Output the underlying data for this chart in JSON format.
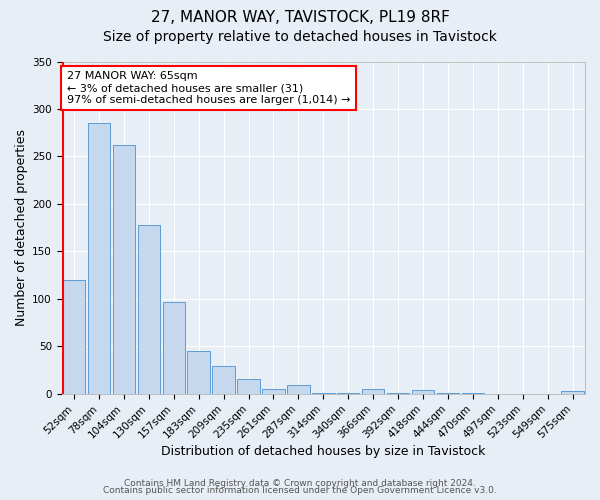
{
  "title1": "27, MANOR WAY, TAVISTOCK, PL19 8RF",
  "title2": "Size of property relative to detached houses in Tavistock",
  "xlabel": "Distribution of detached houses by size in Tavistock",
  "ylabel": "Number of detached properties",
  "categories": [
    "52sqm",
    "78sqm",
    "104sqm",
    "130sqm",
    "157sqm",
    "183sqm",
    "209sqm",
    "235sqm",
    "261sqm",
    "287sqm",
    "314sqm",
    "340sqm",
    "366sqm",
    "392sqm",
    "418sqm",
    "444sqm",
    "470sqm",
    "497sqm",
    "523sqm",
    "549sqm",
    "575sqm"
  ],
  "values": [
    120,
    285,
    262,
    178,
    97,
    45,
    29,
    16,
    5,
    9,
    1,
    1,
    5,
    1,
    4,
    1,
    1,
    0,
    0,
    0,
    3
  ],
  "bar_color": "#c5d8ed",
  "bar_edge_color": "#5b9bd5",
  "annotation_title": "27 MANOR WAY: 65sqm",
  "annotation_line1": "← 3% of detached houses are smaller (31)",
  "annotation_line2": "97% of semi-detached houses are larger (1,014) →",
  "ylim": [
    0,
    350
  ],
  "yticks": [
    0,
    50,
    100,
    150,
    200,
    250,
    300,
    350
  ],
  "footer1": "Contains HM Land Registry data © Crown copyright and database right 2024.",
  "footer2": "Contains public sector information licensed under the Open Government Licence v3.0.",
  "background_color": "#e8eef5",
  "plot_bg_color": "#e8eef5",
  "grid_color": "#ffffff",
  "title1_fontsize": 11,
  "title2_fontsize": 10,
  "axis_label_fontsize": 9,
  "tick_fontsize": 7.5,
  "footer_fontsize": 6.5
}
